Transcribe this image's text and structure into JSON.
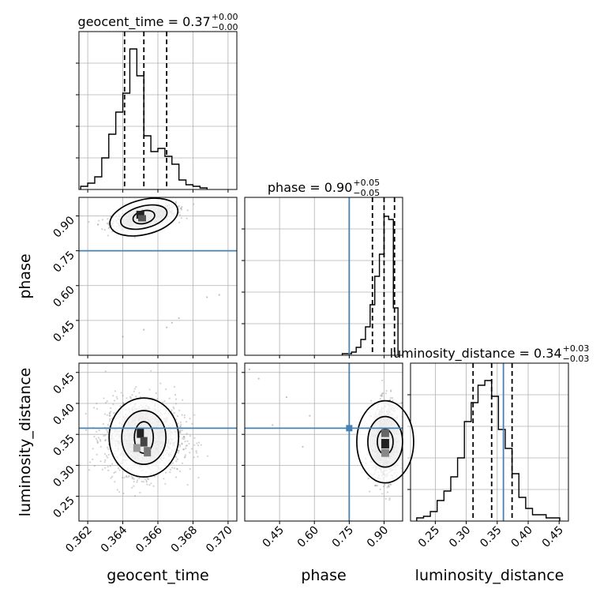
{
  "chart_data": [
    {
      "id": "geocent_time",
      "type": "histogram",
      "title": {
        "base": "geocent_time = 0.37",
        "sup": "+0.00",
        "sub": "−0.00"
      },
      "xlim": [
        0.3615,
        0.3705
      ],
      "x_ticks": [
        0.362,
        0.364,
        0.366,
        0.368,
        0.37
      ],
      "x_tick_labels": [
        "0.362",
        "0.364",
        "0.366",
        "0.368",
        "0.370"
      ],
      "xlabel": "geocent_time",
      "bin_edges": [
        0.3616,
        0.362,
        0.3624,
        0.3628,
        0.3632,
        0.3636,
        0.364,
        0.3644,
        0.3648,
        0.3652,
        0.3656,
        0.366,
        0.3664,
        0.3668,
        0.3672,
        0.3676,
        0.368,
        0.3684,
        0.3688
      ],
      "counts": [
        0.02,
        0.04,
        0.08,
        0.2,
        0.35,
        0.49,
        0.61,
        0.89,
        0.72,
        0.34,
        0.24,
        0.26,
        0.21,
        0.16,
        0.06,
        0.03,
        0.02,
        0.01
      ],
      "quantiles": [
        0.3641,
        0.3652,
        0.3665
      ],
      "truth": null
    },
    {
      "id": "phase",
      "type": "histogram",
      "title": {
        "base": "phase = 0.90",
        "sup": "+0.05",
        "sub": "−0.05"
      },
      "xlim": [
        0.3,
        0.98
      ],
      "x_ticks": [
        0.45,
        0.6,
        0.75,
        0.9
      ],
      "x_tick_labels": [
        "0.45",
        "0.60",
        "0.75",
        "0.90"
      ],
      "xlabel": "phase",
      "bin_edges": [
        0.72,
        0.74,
        0.76,
        0.78,
        0.8,
        0.82,
        0.84,
        0.86,
        0.88,
        0.9,
        0.92,
        0.94,
        0.96
      ],
      "counts": [
        0.01,
        0.01,
        0.02,
        0.05,
        0.1,
        0.18,
        0.32,
        0.5,
        0.64,
        0.88,
        0.86,
        0.3
      ],
      "quantiles": [
        0.85,
        0.9,
        0.945
      ],
      "truth": 0.75
    },
    {
      "id": "luminosity_distance",
      "type": "histogram",
      "title": {
        "base": "luminosity_distance = 0.34",
        "sup": "+0.03",
        "sub": "−0.03"
      },
      "xlim": [
        0.21,
        0.465
      ],
      "x_ticks": [
        0.25,
        0.3,
        0.35,
        0.4,
        0.45
      ],
      "x_tick_labels": [
        "0.25",
        "0.30",
        "0.35",
        "0.40",
        "0.45"
      ],
      "xlabel": "luminosity_distance",
      "bin_edges": [
        0.22,
        0.231,
        0.242,
        0.253,
        0.264,
        0.275,
        0.286,
        0.297,
        0.308,
        0.319,
        0.33,
        0.341,
        0.352,
        0.363,
        0.374,
        0.385,
        0.396,
        0.407,
        0.418,
        0.429,
        0.44,
        0.451
      ],
      "counts": [
        0.02,
        0.03,
        0.06,
        0.13,
        0.19,
        0.28,
        0.4,
        0.63,
        0.75,
        0.86,
        0.89,
        0.79,
        0.58,
        0.46,
        0.3,
        0.15,
        0.08,
        0.04,
        0.04,
        0.02,
        0.02
      ],
      "quantiles": [
        0.311,
        0.341,
        0.374
      ],
      "truth": 0.36
    },
    {
      "id": "phase_vs_geocent_time",
      "type": "scatter-density",
      "x_param": "geocent_time",
      "y_param": "phase",
      "xlim": [
        0.3615,
        0.3705
      ],
      "ylim": [
        0.3,
        0.98
      ],
      "y_ticks": [
        0.45,
        0.6,
        0.75,
        0.9
      ],
      "y_tick_labels": [
        "0.45",
        "0.60",
        "0.75",
        "0.90"
      ],
      "ylabel": "phase",
      "truth_x": null,
      "truth_y": 0.75
    },
    {
      "id": "luminosity_distance_vs_geocent_time",
      "type": "scatter-density",
      "x_param": "geocent_time",
      "y_param": "luminosity_distance",
      "xlim": [
        0.3615,
        0.3705
      ],
      "ylim": [
        0.21,
        0.465
      ],
      "y_ticks": [
        0.25,
        0.3,
        0.35,
        0.4,
        0.45
      ],
      "y_tick_labels": [
        "0.25",
        "0.30",
        "0.35",
        "0.40",
        "0.45"
      ],
      "ylabel": "luminosity_distance",
      "truth_x": null,
      "truth_y": 0.36
    },
    {
      "id": "luminosity_distance_vs_phase",
      "type": "scatter-density",
      "x_param": "phase",
      "y_param": "luminosity_distance",
      "xlim": [
        0.3,
        0.98
      ],
      "ylim": [
        0.21,
        0.465
      ],
      "truth_x": 0.75,
      "truth_y": 0.36
    }
  ],
  "colors": {
    "truth": "#4682b4",
    "line": "#000000",
    "grid": "#b0b0b0",
    "points": "#7f7f7f"
  }
}
